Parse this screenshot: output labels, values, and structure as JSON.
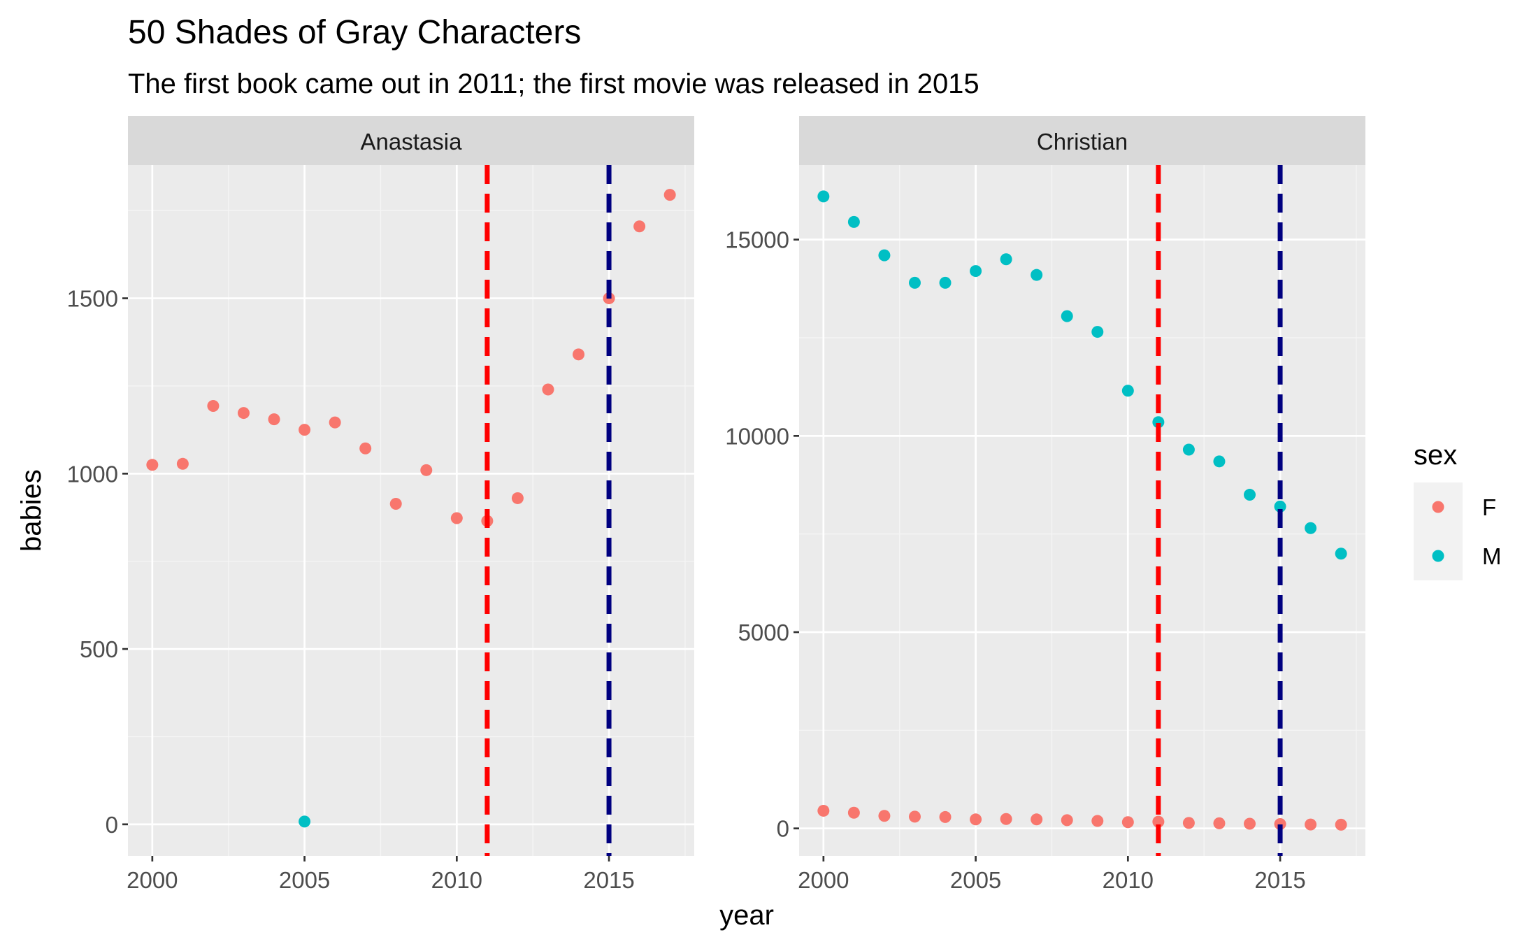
{
  "chart_data": {
    "type": "scatter",
    "title": "50 Shades of Gray Characters",
    "subtitle": "The first book came out in 2011; the first movie was released in 2015",
    "xlabel": "year",
    "ylabel": "babies",
    "grid": true,
    "legend": {
      "title": "sex",
      "placement": "right",
      "entries": [
        {
          "label": "F",
          "color": "#F8766D"
        },
        {
          "label": "M",
          "color": "#00BFC4"
        }
      ]
    },
    "reference_lines": [
      {
        "x": 2011,
        "color": "#FF0000",
        "style": "dashed"
      },
      {
        "x": 2015,
        "color": "#000080",
        "style": "dashed"
      }
    ],
    "facets": [
      {
        "name": "Anastasia",
        "xlim": [
          1999.2,
          2017.8
        ],
        "ylim": [
          -90,
          1880
        ],
        "x_ticks": [
          2000,
          2005,
          2010,
          2015
        ],
        "y_ticks": [
          0,
          500,
          1000,
          1500
        ],
        "series": [
          {
            "name": "F",
            "color": "#F8766D",
            "points": [
              [
                2000,
                1025
              ],
              [
                2001,
                1028
              ],
              [
                2002,
                1193
              ],
              [
                2003,
                1173
              ],
              [
                2004,
                1155
              ],
              [
                2005,
                1125
              ],
              [
                2006,
                1146
              ],
              [
                2007,
                1072
              ],
              [
                2008,
                914
              ],
              [
                2009,
                1010
              ],
              [
                2010,
                873
              ],
              [
                2011,
                865
              ],
              [
                2012,
                930
              ],
              [
                2013,
                1240
              ],
              [
                2014,
                1340
              ],
              [
                2015,
                1500
              ],
              [
                2016,
                1705
              ],
              [
                2017,
                1795
              ]
            ]
          },
          {
            "name": "M",
            "color": "#00BFC4",
            "points": [
              [
                2005,
                8
              ]
            ]
          }
        ]
      },
      {
        "name": "Christian",
        "xlim": [
          1999.2,
          2017.8
        ],
        "ylim": [
          -700,
          16900
        ],
        "x_ticks": [
          2000,
          2005,
          2010,
          2015
        ],
        "y_ticks": [
          0,
          5000,
          10000,
          15000
        ],
        "series": [
          {
            "name": "F",
            "color": "#F8766D",
            "points": [
              [
                2000,
                450
              ],
              [
                2001,
                400
              ],
              [
                2002,
                320
              ],
              [
                2003,
                300
              ],
              [
                2004,
                290
              ],
              [
                2005,
                230
              ],
              [
                2006,
                240
              ],
              [
                2007,
                230
              ],
              [
                2008,
                210
              ],
              [
                2009,
                190
              ],
              [
                2010,
                160
              ],
              [
                2011,
                170
              ],
              [
                2012,
                140
              ],
              [
                2013,
                130
              ],
              [
                2014,
                120
              ],
              [
                2015,
                110
              ],
              [
                2016,
                100
              ],
              [
                2017,
                95
              ]
            ]
          },
          {
            "name": "M",
            "color": "#00BFC4",
            "points": [
              [
                2000,
                16100
              ],
              [
                2001,
                15450
              ],
              [
                2002,
                14600
              ],
              [
                2003,
                13900
              ],
              [
                2004,
                13900
              ],
              [
                2005,
                14200
              ],
              [
                2006,
                14500
              ],
              [
                2007,
                14100
              ],
              [
                2008,
                13050
              ],
              [
                2009,
                12650
              ],
              [
                2010,
                11150
              ],
              [
                2011,
                10350
              ],
              [
                2012,
                9650
              ],
              [
                2013,
                9350
              ],
              [
                2014,
                8500
              ],
              [
                2015,
                8200
              ],
              [
                2016,
                7650
              ],
              [
                2017,
                7000
              ]
            ]
          }
        ]
      }
    ]
  }
}
